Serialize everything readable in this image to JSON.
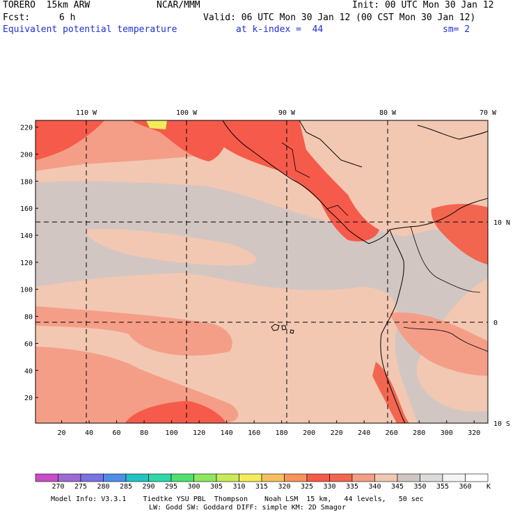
{
  "header": {
    "model": "TORERO  15km ARW",
    "org": "NCAR/MMM",
    "init": "Init: 00 UTC Mon 30 Jan 12",
    "fcst_label": "Fcst:",
    "fcst_value": "6 h",
    "valid": "Valid: 06 UTC Mon 30 Jan 12 (00 CST Mon 30 Jan 12)",
    "field": "Equivalent potential temperature",
    "level": "at k-index =  44",
    "smooth": "sm= 2"
  },
  "map": {
    "lon_labels": [
      "110 W",
      "100 W",
      "90 W",
      "80 W",
      "70 W"
    ],
    "lat_labels": [
      "10 N",
      "0",
      "10 S"
    ],
    "y_ticks": [
      "220",
      "200",
      "180",
      "160",
      "140",
      "120",
      "100",
      "80",
      "60",
      "40",
      "20"
    ],
    "x_ticks": [
      "20",
      "40",
      "60",
      "80",
      "100",
      "120",
      "140",
      "160",
      "180",
      "200",
      "220",
      "240",
      "260",
      "280",
      "300",
      "320"
    ],
    "grid_x_range": [
      1,
      330
    ],
    "grid_y_range": [
      1,
      225
    ]
  },
  "colorbar": {
    "unit": "K",
    "labels": [
      "270",
      "275",
      "280",
      "285",
      "290",
      "295",
      "300",
      "305",
      "310",
      "315",
      "320",
      "325",
      "330",
      "335",
      "340",
      "345",
      "350",
      "355",
      "360"
    ],
    "colors": [
      "#c84ec8",
      "#9f6ad6",
      "#7a74e0",
      "#4f8ee8",
      "#22c4c0",
      "#2fd8a8",
      "#50e070",
      "#8de860",
      "#c8ec58",
      "#f4ec5c",
      "#f6c060",
      "#f6945c",
      "#f65a4a",
      "#f26650",
      "#f49e88",
      "#f2c8b2",
      "#d2c6c2",
      "#dcdcdc",
      "#f4f4f4",
      "#ffffff"
    ]
  },
  "footer": {
    "line1": "Model Info: V3.3.1    Tiedtke YSU PBL  Thompson    Noah LSM  15 km,   44 levels,   50 sec",
    "line2": "LW: Godd SW: Goddard DIFF: simple KM: 2D Smagor"
  }
}
